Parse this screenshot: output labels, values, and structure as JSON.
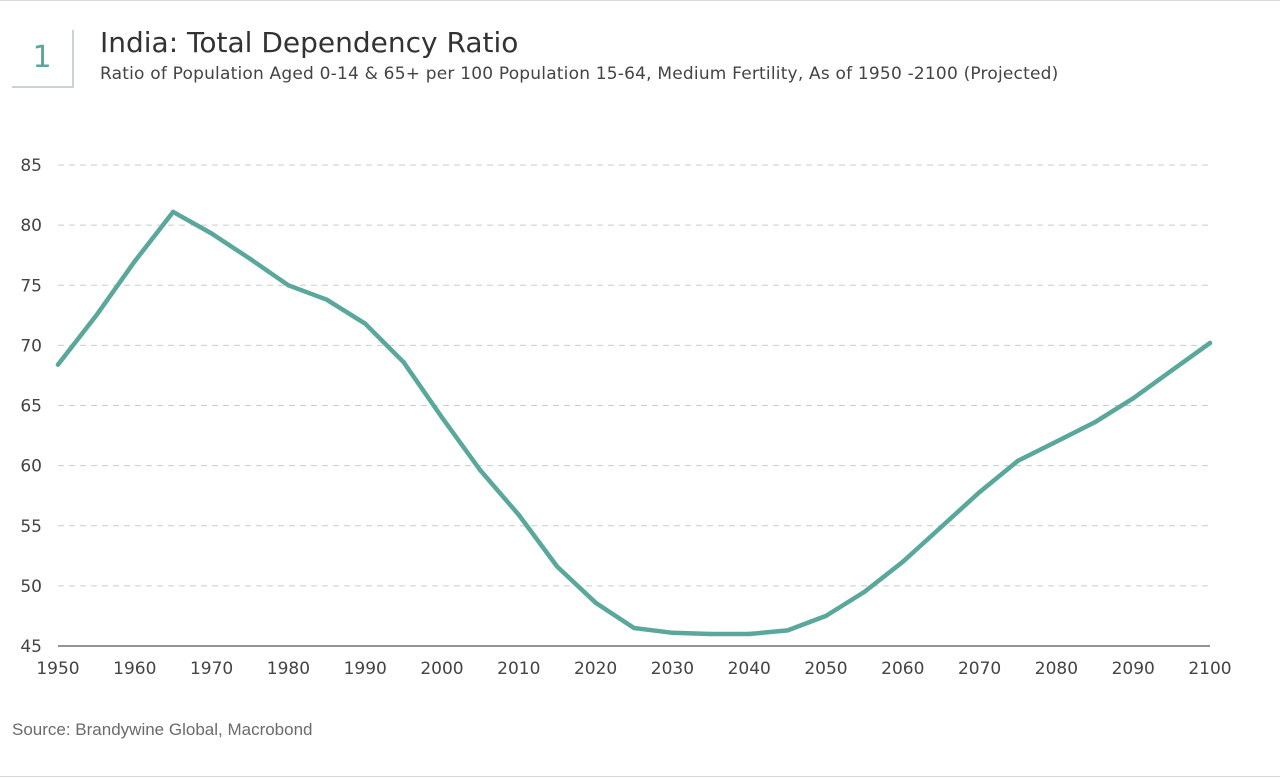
{
  "header": {
    "badge": "1",
    "title": "India: Total Dependency Ratio",
    "subtitle": "Ratio of Population Aged 0-14 & 65+ per 100 Population 15-64, Medium Fertility, As of 1950 -2100 (Projected)"
  },
  "footer": {
    "source": "Source: Brandywine Global, Macrobond"
  },
  "colors": {
    "line": "#5aa79b",
    "grid": "#cccccc",
    "axis": "#555555"
  },
  "chart_data": {
    "type": "line",
    "title": "India: Total Dependency Ratio",
    "subtitle": "Ratio of Population Aged 0-14 & 65+ per 100 Population 15-64, Medium Fertility, As of 1950 -2100 (Projected)",
    "xlabel": "",
    "ylabel": "",
    "xlim": [
      1950,
      2100
    ],
    "ylim": [
      45,
      85
    ],
    "xticks": [
      1950,
      1960,
      1970,
      1980,
      1990,
      2000,
      2010,
      2020,
      2030,
      2040,
      2050,
      2060,
      2070,
      2080,
      2090,
      2100
    ],
    "yticks": [
      45,
      50,
      55,
      60,
      65,
      70,
      75,
      80,
      85
    ],
    "grid": "horizontal-dashed",
    "legend": "none",
    "x": [
      1950,
      1955,
      1960,
      1965,
      1970,
      1975,
      1980,
      1985,
      1990,
      1995,
      2000,
      2005,
      2010,
      2015,
      2020,
      2025,
      2030,
      2035,
      2040,
      2045,
      2050,
      2055,
      2060,
      2065,
      2070,
      2075,
      2080,
      2085,
      2090,
      2095,
      2100
    ],
    "series": [
      {
        "values": [
          68.4,
          72.5,
          77.0,
          81.1,
          79.3,
          77.2,
          75.0,
          73.8,
          71.8,
          68.6,
          64.0,
          59.6,
          55.9,
          51.6,
          48.6,
          46.5,
          46.1,
          46.0,
          46.0,
          46.3,
          47.5,
          49.5,
          52.0,
          54.9,
          57.8,
          60.4,
          62.0,
          63.6,
          65.6,
          67.9,
          70.2
        ]
      }
    ]
  }
}
